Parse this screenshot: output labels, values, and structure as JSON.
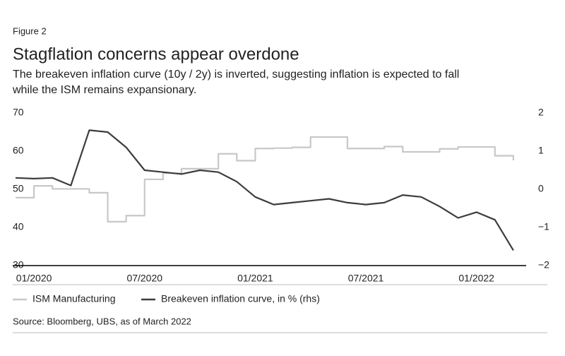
{
  "chart_data": {
    "type": "line",
    "figure_label": "Figure 2",
    "title": "Stagflation concerns appear overdone",
    "subtitle": [
      "The breakeven inflation curve (10y / 2y) is inverted, suggesting inflation is expected to fall",
      "while the ISM remains expansionary."
    ],
    "source": "Source: Bloomberg, UBS, as of March 2022",
    "x": [
      "2019-12",
      "2020-01",
      "2020-02",
      "2020-03",
      "2020-04",
      "2020-05",
      "2020-06",
      "2020-07",
      "2020-08",
      "2020-09",
      "2020-10",
      "2020-11",
      "2020-12",
      "2021-01",
      "2021-02",
      "2021-03",
      "2021-04",
      "2021-05",
      "2021-06",
      "2021-07",
      "2021-08",
      "2021-09",
      "2021-10",
      "2021-11",
      "2021-12",
      "2022-01",
      "2022-02",
      "2022-03"
    ],
    "xlim": [
      "2019-12",
      "2022-04"
    ],
    "xticks": [
      {
        "value": "2020-01",
        "label": "01/2020"
      },
      {
        "value": "2020-07",
        "label": "07/2020"
      },
      {
        "value": "2021-01",
        "label": "01/2021"
      },
      {
        "value": "2021-07",
        "label": "07/2021"
      },
      {
        "value": "2022-01",
        "label": "01/2022"
      }
    ],
    "ylim": [
      30,
      70
    ],
    "yticks": [
      30,
      40,
      50,
      60,
      70
    ],
    "y2lim": [
      -2,
      2
    ],
    "y2ticks": [
      {
        "value": -2,
        "label": "−2"
      },
      {
        "value": -1,
        "label": "−1"
      },
      0,
      1,
      2
    ],
    "series": [
      {
        "name": "ISM Manufacturing",
        "color": "#c8c8c8",
        "step": true,
        "values": [
          47.8,
          50.9,
          50.1,
          50.1,
          49.1,
          41.5,
          43.1,
          52.6,
          54.2,
          55.4,
          55.4,
          59.3,
          57.5,
          60.7,
          60.8,
          61,
          63.7,
          63.7,
          60.7,
          60.7,
          61.2,
          59.8,
          59.8,
          60.6,
          61.1,
          61.1,
          58.8,
          57.6
        ]
      },
      {
        "name": "Breakeven inflation curve, in % (rhs)",
        "color": "#3c3c3c",
        "axis": "y2",
        "values": [
          0.3,
          0.28,
          0.3,
          0.1,
          1.55,
          1.5,
          1.1,
          0.5,
          0.45,
          0.4,
          0.5,
          0.45,
          0.2,
          -0.2,
          -0.4,
          -0.35,
          -0.3,
          -0.25,
          -0.35,
          -0.4,
          -0.35,
          -0.15,
          -0.2,
          -0.45,
          -0.75,
          -0.6,
          -0.8,
          -1.6
        ]
      }
    ]
  }
}
